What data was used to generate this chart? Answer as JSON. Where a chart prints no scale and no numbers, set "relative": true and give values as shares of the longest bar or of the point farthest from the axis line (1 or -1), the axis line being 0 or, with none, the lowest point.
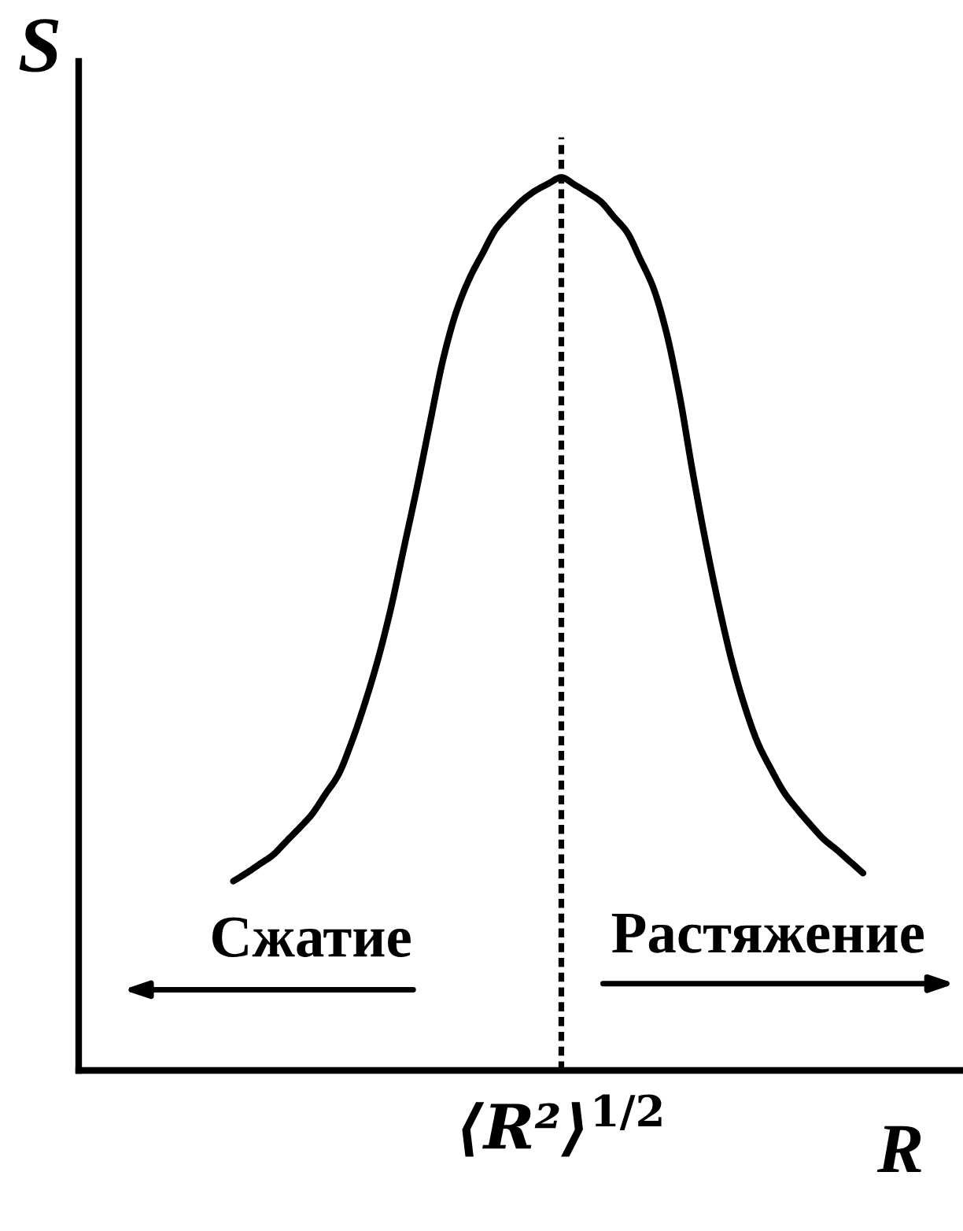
{
  "chart_data": {
    "type": "line",
    "relative": true,
    "xlabel": "R",
    "ylabel": "S",
    "categories": [
      null,
      null,
      null,
      null,
      null,
      null,
      null,
      null,
      null,
      null,
      null,
      null,
      null,
      null,
      null,
      null,
      null,
      null,
      null,
      null,
      null,
      null,
      null,
      null,
      null,
      null,
      null,
      null,
      null,
      null,
      null,
      null,
      null,
      null,
      null,
      null,
      null,
      null,
      null,
      null,
      null,
      null,
      null,
      null,
      null,
      null,
      null,
      null,
      null
    ],
    "series": [
      {
        "color": "#000000",
        "values": [
          0.212,
          0.221,
          0.231,
          0.241,
          0.256,
          0.271,
          0.287,
          0.309,
          0.331,
          0.367,
          0.41,
          0.459,
          0.517,
          0.585,
          0.653,
          0.726,
          0.797,
          0.85,
          0.887,
          0.915,
          0.942,
          0.959,
          0.974,
          0.985,
          0.993,
          1.0,
          0.992,
          0.983,
          0.973,
          0.956,
          0.939,
          0.909,
          0.877,
          0.827,
          0.757,
          0.671,
          0.592,
          0.521,
          0.458,
          0.407,
          0.366,
          0.337,
          0.311,
          0.292,
          0.275,
          0.259,
          0.247,
          0.234,
          0.221
        ]
      }
    ],
    "annotations": [
      "Сжатие",
      "Растяжение",
      "⟨R²⟩$^{1/2}$"
    ],
    "marker": "none",
    "line_style": "solid"
  }
}
